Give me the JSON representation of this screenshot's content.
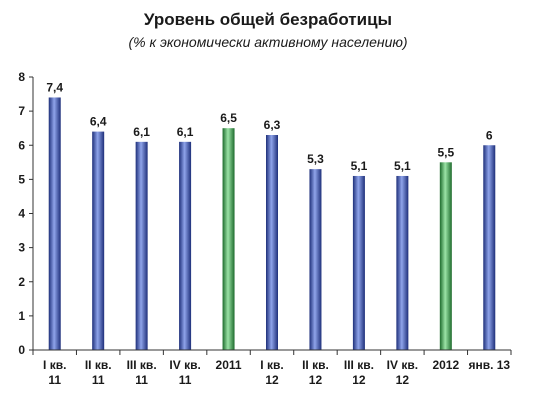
{
  "chart_data": {
    "type": "bar",
    "title": "Уровень общей безработицы",
    "subtitle": "(% к экономически активному населению)",
    "xlabel": "",
    "ylabel": "",
    "ylim": [
      0,
      8
    ],
    "yticks": [
      0,
      1,
      2,
      3,
      4,
      5,
      6,
      7,
      8
    ],
    "grid": false,
    "legend": "none",
    "categories": [
      [
        "I кв.",
        "11"
      ],
      [
        "II кв.",
        "11"
      ],
      [
        "III кв.",
        "11"
      ],
      [
        "IV кв.",
        "11"
      ],
      [
        "2011"
      ],
      [
        "I кв.",
        "12"
      ],
      [
        "II кв.",
        "12"
      ],
      [
        "III кв.",
        "12"
      ],
      [
        "IV кв.",
        "12"
      ],
      [
        "2012"
      ],
      [
        "янв. 13"
      ]
    ],
    "values": [
      7.4,
      6.4,
      6.1,
      6.1,
      6.5,
      6.3,
      5.3,
      5.1,
      5.1,
      5.5,
      6
    ],
    "value_labels": [
      "7,4",
      "6,4",
      "6,1",
      "6,1",
      "6,5",
      "6,3",
      "5,3",
      "5,1",
      "5,1",
      "5,5",
      "6"
    ],
    "bar_kind": [
      "quarter",
      "quarter",
      "quarter",
      "quarter",
      "annual",
      "quarter",
      "quarter",
      "quarter",
      "quarter",
      "annual",
      "quarter"
    ],
    "colors": {
      "quarter": "#3b55b5",
      "annual": "#3fae52"
    }
  }
}
